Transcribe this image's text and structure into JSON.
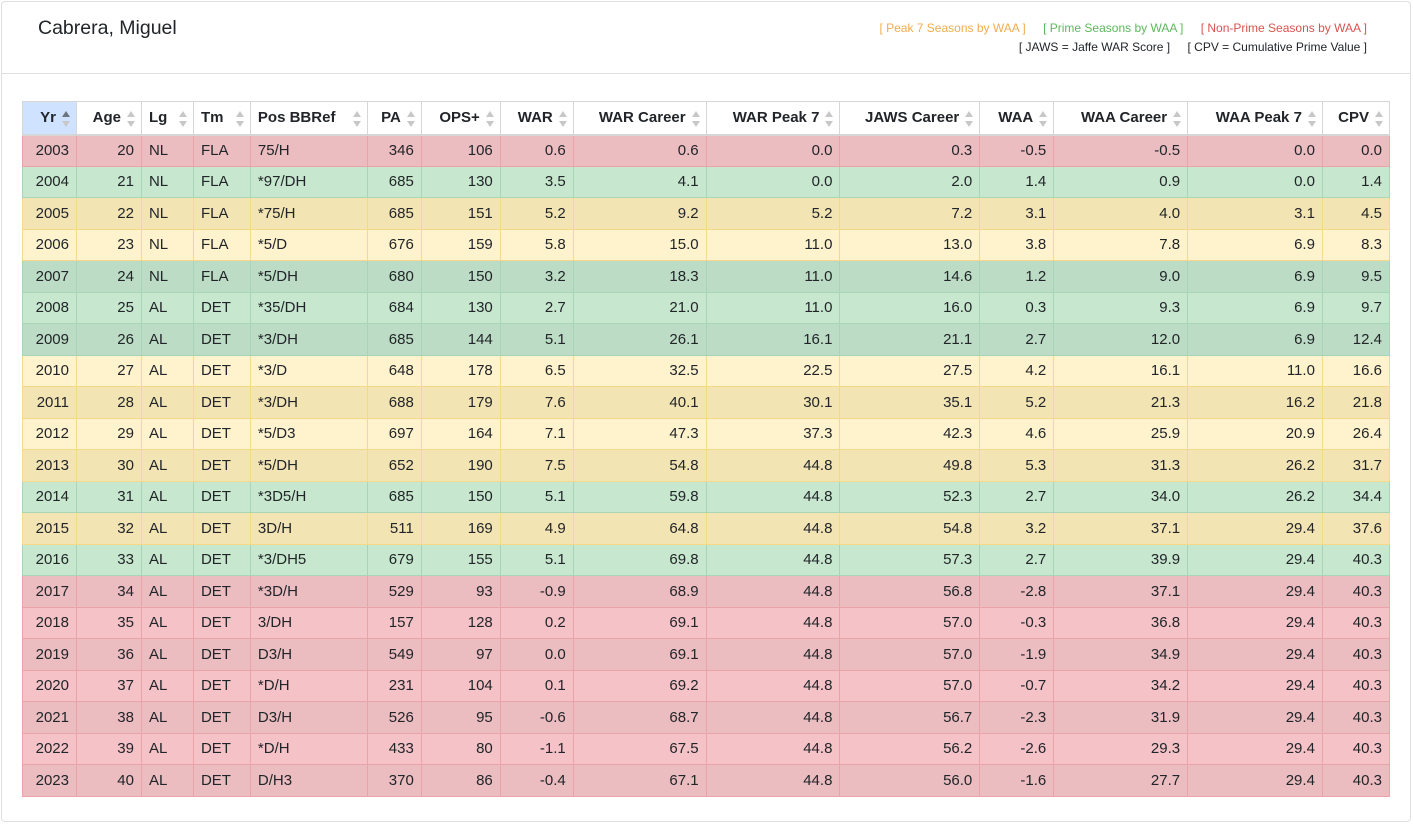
{
  "player": {
    "name": "Cabrera, Miguel"
  },
  "legend": {
    "peak": "[ Peak 7 Seasons by WAA ]",
    "prime": "[ Prime Seasons by WAA ]",
    "nonprime": "[ Non-Prime Seasons by WAA ]",
    "jaws": "[ JAWS = Jaffe WAR Score ]",
    "cpv": "[ CPV = Cumulative Prime Value ]",
    "colors": {
      "peak": "#f0ad4e",
      "prime": "#5cb85c",
      "nonprime": "#d9534f"
    }
  },
  "table": {
    "headers": [
      "Yr",
      "Age",
      "Lg",
      "Tm",
      "Pos BBRef",
      "PA",
      "OPS+",
      "WAR",
      "WAR Career",
      "WAR Peak 7",
      "JAWS Career",
      "WAA",
      "WAA Career",
      "WAA Peak 7",
      "CPV"
    ],
    "sorted_column": "Yr",
    "sort_direction": "ascending",
    "rows": [
      {
        "cat": "nonprime",
        "alt": true,
        "cells": [
          "2003",
          "20",
          "NL",
          "FLA",
          "75/H",
          "346",
          "106",
          "0.6",
          "0.6",
          "0.0",
          "0.3",
          "-0.5",
          "-0.5",
          "0.0",
          "0.0"
        ]
      },
      {
        "cat": "prime",
        "alt": false,
        "cells": [
          "2004",
          "21",
          "NL",
          "FLA",
          "*97/DH",
          "685",
          "130",
          "3.5",
          "4.1",
          "0.0",
          "2.0",
          "1.4",
          "0.9",
          "0.0",
          "1.4"
        ]
      },
      {
        "cat": "peak",
        "alt": true,
        "cells": [
          "2005",
          "22",
          "NL",
          "FLA",
          "*75/H",
          "685",
          "151",
          "5.2",
          "9.2",
          "5.2",
          "7.2",
          "3.1",
          "4.0",
          "3.1",
          "4.5"
        ]
      },
      {
        "cat": "peak",
        "alt": false,
        "cells": [
          "2006",
          "23",
          "NL",
          "FLA",
          "*5/D",
          "676",
          "159",
          "5.8",
          "15.0",
          "11.0",
          "13.0",
          "3.8",
          "7.8",
          "6.9",
          "8.3"
        ]
      },
      {
        "cat": "prime",
        "alt": true,
        "cells": [
          "2007",
          "24",
          "NL",
          "FLA",
          "*5/DH",
          "680",
          "150",
          "3.2",
          "18.3",
          "11.0",
          "14.6",
          "1.2",
          "9.0",
          "6.9",
          "9.5"
        ]
      },
      {
        "cat": "prime",
        "alt": false,
        "cells": [
          "2008",
          "25",
          "AL",
          "DET",
          "*35/DH",
          "684",
          "130",
          "2.7",
          "21.0",
          "11.0",
          "16.0",
          "0.3",
          "9.3",
          "6.9",
          "9.7"
        ]
      },
      {
        "cat": "prime",
        "alt": true,
        "cells": [
          "2009",
          "26",
          "AL",
          "DET",
          "*3/DH",
          "685",
          "144",
          "5.1",
          "26.1",
          "16.1",
          "21.1",
          "2.7",
          "12.0",
          "6.9",
          "12.4"
        ]
      },
      {
        "cat": "peak",
        "alt": false,
        "cells": [
          "2010",
          "27",
          "AL",
          "DET",
          "*3/D",
          "648",
          "178",
          "6.5",
          "32.5",
          "22.5",
          "27.5",
          "4.2",
          "16.1",
          "11.0",
          "16.6"
        ]
      },
      {
        "cat": "peak",
        "alt": true,
        "cells": [
          "2011",
          "28",
          "AL",
          "DET",
          "*3/DH",
          "688",
          "179",
          "7.6",
          "40.1",
          "30.1",
          "35.1",
          "5.2",
          "21.3",
          "16.2",
          "21.8"
        ]
      },
      {
        "cat": "peak",
        "alt": false,
        "cells": [
          "2012",
          "29",
          "AL",
          "DET",
          "*5/D3",
          "697",
          "164",
          "7.1",
          "47.3",
          "37.3",
          "42.3",
          "4.6",
          "25.9",
          "20.9",
          "26.4"
        ]
      },
      {
        "cat": "peak",
        "alt": true,
        "cells": [
          "2013",
          "30",
          "AL",
          "DET",
          "*5/DH",
          "652",
          "190",
          "7.5",
          "54.8",
          "44.8",
          "49.8",
          "5.3",
          "31.3",
          "26.2",
          "31.7"
        ]
      },
      {
        "cat": "prime",
        "alt": false,
        "cells": [
          "2014",
          "31",
          "AL",
          "DET",
          "*3D5/H",
          "685",
          "150",
          "5.1",
          "59.8",
          "44.8",
          "52.3",
          "2.7",
          "34.0",
          "26.2",
          "34.4"
        ]
      },
      {
        "cat": "peak",
        "alt": true,
        "cells": [
          "2015",
          "32",
          "AL",
          "DET",
          "3D/H",
          "511",
          "169",
          "4.9",
          "64.8",
          "44.8",
          "54.8",
          "3.2",
          "37.1",
          "29.4",
          "37.6"
        ]
      },
      {
        "cat": "prime",
        "alt": false,
        "cells": [
          "2016",
          "33",
          "AL",
          "DET",
          "*3/DH5",
          "679",
          "155",
          "5.1",
          "69.8",
          "44.8",
          "57.3",
          "2.7",
          "39.9",
          "29.4",
          "40.3"
        ]
      },
      {
        "cat": "nonprime",
        "alt": true,
        "cells": [
          "2017",
          "34",
          "AL",
          "DET",
          "*3D/H",
          "529",
          "93",
          "-0.9",
          "68.9",
          "44.8",
          "56.8",
          "-2.8",
          "37.1",
          "29.4",
          "40.3"
        ]
      },
      {
        "cat": "nonprime",
        "alt": false,
        "cells": [
          "2018",
          "35",
          "AL",
          "DET",
          "3/DH",
          "157",
          "128",
          "0.2",
          "69.1",
          "44.8",
          "57.0",
          "-0.3",
          "36.8",
          "29.4",
          "40.3"
        ]
      },
      {
        "cat": "nonprime",
        "alt": true,
        "cells": [
          "2019",
          "36",
          "AL",
          "DET",
          "D3/H",
          "549",
          "97",
          "0.0",
          "69.1",
          "44.8",
          "57.0",
          "-1.9",
          "34.9",
          "29.4",
          "40.3"
        ]
      },
      {
        "cat": "nonprime",
        "alt": false,
        "cells": [
          "2020",
          "37",
          "AL",
          "DET",
          "*D/H",
          "231",
          "104",
          "0.1",
          "69.2",
          "44.8",
          "57.0",
          "-0.7",
          "34.2",
          "29.4",
          "40.3"
        ]
      },
      {
        "cat": "nonprime",
        "alt": true,
        "cells": [
          "2021",
          "38",
          "AL",
          "DET",
          "D3/H",
          "526",
          "95",
          "-0.6",
          "68.7",
          "44.8",
          "56.7",
          "-2.3",
          "31.9",
          "29.4",
          "40.3"
        ]
      },
      {
        "cat": "nonprime",
        "alt": false,
        "cells": [
          "2022",
          "39",
          "AL",
          "DET",
          "*D/H",
          "433",
          "80",
          "-1.1",
          "67.5",
          "44.8",
          "56.2",
          "-2.6",
          "29.3",
          "29.4",
          "40.3"
        ]
      },
      {
        "cat": "nonprime",
        "alt": true,
        "cells": [
          "2023",
          "40",
          "AL",
          "DET",
          "D/H3",
          "370",
          "86",
          "-0.4",
          "67.1",
          "44.8",
          "56.0",
          "-1.6",
          "27.7",
          "29.4",
          "40.3"
        ]
      }
    ]
  }
}
